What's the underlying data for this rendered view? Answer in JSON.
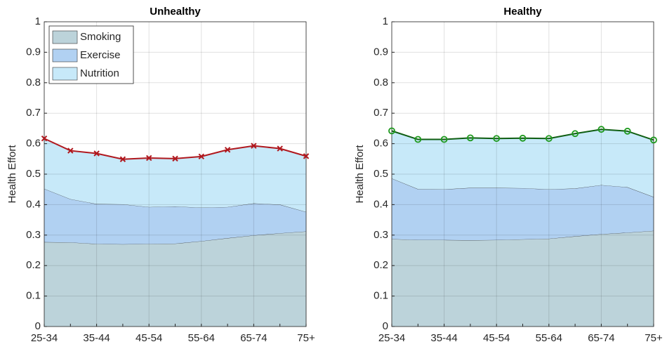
{
  "chart_data": [
    {
      "type": "stacked_area",
      "title": "Unhealthy",
      "y_label": "Health Effort",
      "categories": [
        "25-34",
        null,
        "35-44",
        null,
        "45-54",
        null,
        "55-64",
        null,
        "65-74",
        null,
        "75+"
      ],
      "ylim": [
        0,
        1
      ],
      "yticks": [
        0,
        0.1,
        0.2,
        0.3,
        0.4,
        0.5,
        0.6,
        0.7,
        0.8,
        0.9,
        1
      ],
      "grid": true,
      "legend": "upper left",
      "line_color": "#b0181e",
      "marker": "x",
      "series": [
        {
          "name": "Smoking",
          "color": "#bcd3da",
          "values": [
            0.277,
            0.276,
            0.271,
            0.27,
            0.271,
            0.272,
            0.28,
            0.29,
            0.299,
            0.306,
            0.312
          ]
        },
        {
          "name": "Exercise",
          "color": "#b1d1f2",
          "values": [
            0.175,
            0.142,
            0.131,
            0.131,
            0.121,
            0.122,
            0.11,
            0.102,
            0.105,
            0.094,
            0.064
          ]
        },
        {
          "name": "Nutrition",
          "color": "#c7e9f9",
          "values": [
            0.165,
            0.159,
            0.166,
            0.148,
            0.161,
            0.157,
            0.168,
            0.188,
            0.189,
            0.184,
            0.183
          ]
        }
      ]
    },
    {
      "type": "stacked_area",
      "title": "Healthy",
      "y_label": "Health Effort",
      "categories": [
        "25-34",
        null,
        "35-44",
        null,
        "45-54",
        null,
        "55-64",
        null,
        "65-74",
        null,
        "75+"
      ],
      "ylim": [
        0,
        1
      ],
      "yticks": [
        0,
        0.1,
        0.2,
        0.3,
        0.4,
        0.5,
        0.6,
        0.7,
        0.8,
        0.9,
        1
      ],
      "grid": true,
      "line_color": "#0f5e12",
      "marker": "o",
      "series": [
        {
          "color": "#bcd3da",
          "values": [
            0.287,
            0.284,
            0.284,
            0.283,
            0.284,
            0.286,
            0.288,
            0.296,
            0.303,
            0.308,
            0.314
          ]
        },
        {
          "color": "#b1d1f2",
          "values": [
            0.199,
            0.167,
            0.166,
            0.172,
            0.171,
            0.168,
            0.162,
            0.157,
            0.161,
            0.149,
            0.111
          ]
        },
        {
          "color": "#c7e9f9",
          "values": [
            0.156,
            0.163,
            0.164,
            0.164,
            0.162,
            0.164,
            0.167,
            0.18,
            0.183,
            0.184,
            0.187
          ]
        }
      ]
    }
  ]
}
